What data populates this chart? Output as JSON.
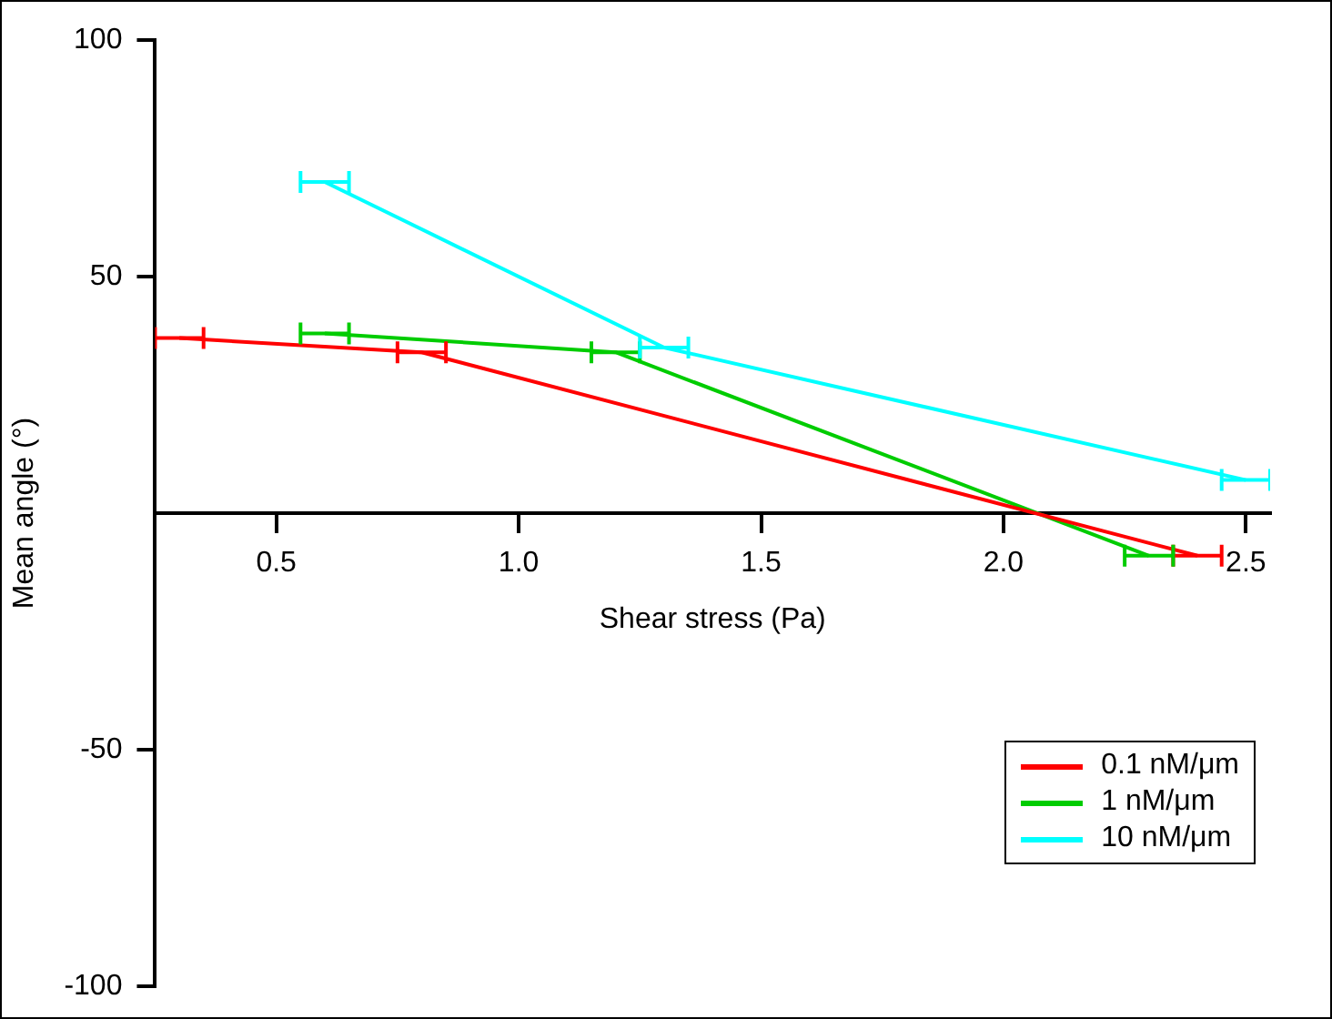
{
  "chart_data": {
    "type": "line",
    "xlabel": "Shear stress (Pa)",
    "ylabel": "Mean angle (°)",
    "xlim": [
      0.25,
      2.55
    ],
    "xticks": [
      0.5,
      {
        "value": 1,
        "label": "1.0"
      },
      1.5,
      {
        "value": 2,
        "label": "2.0"
      },
      2.5
    ],
    "ylim": [
      -100,
      100
    ],
    "yticks": [
      -100,
      -50,
      50,
      100
    ],
    "grid": false,
    "legend": "bottom right",
    "marker": "none",
    "line_style": "solid",
    "series": [
      {
        "name": "0.1 nM/μm",
        "color": "#ff0000",
        "x": [
          0.3,
          0.8,
          2.4
        ],
        "values": [
          37,
          34,
          -9
        ],
        "xerrors": [
          0.05,
          0.05,
          0.05
        ]
      },
      {
        "name": "1 nM/μm",
        "color": "#00cc00",
        "x": [
          0.6,
          1.2,
          2.3
        ],
        "values": [
          38,
          34,
          -9
        ],
        "xerrors": [
          0.05,
          0.05,
          0.05
        ]
      },
      {
        "name": "10 nM/μm",
        "color": "#00ffff",
        "x": [
          0.6,
          1.3,
          2.5
        ],
        "values": [
          70,
          35,
          7
        ],
        "xerrors": [
          0.05,
          0.05,
          0.05
        ]
      }
    ]
  }
}
